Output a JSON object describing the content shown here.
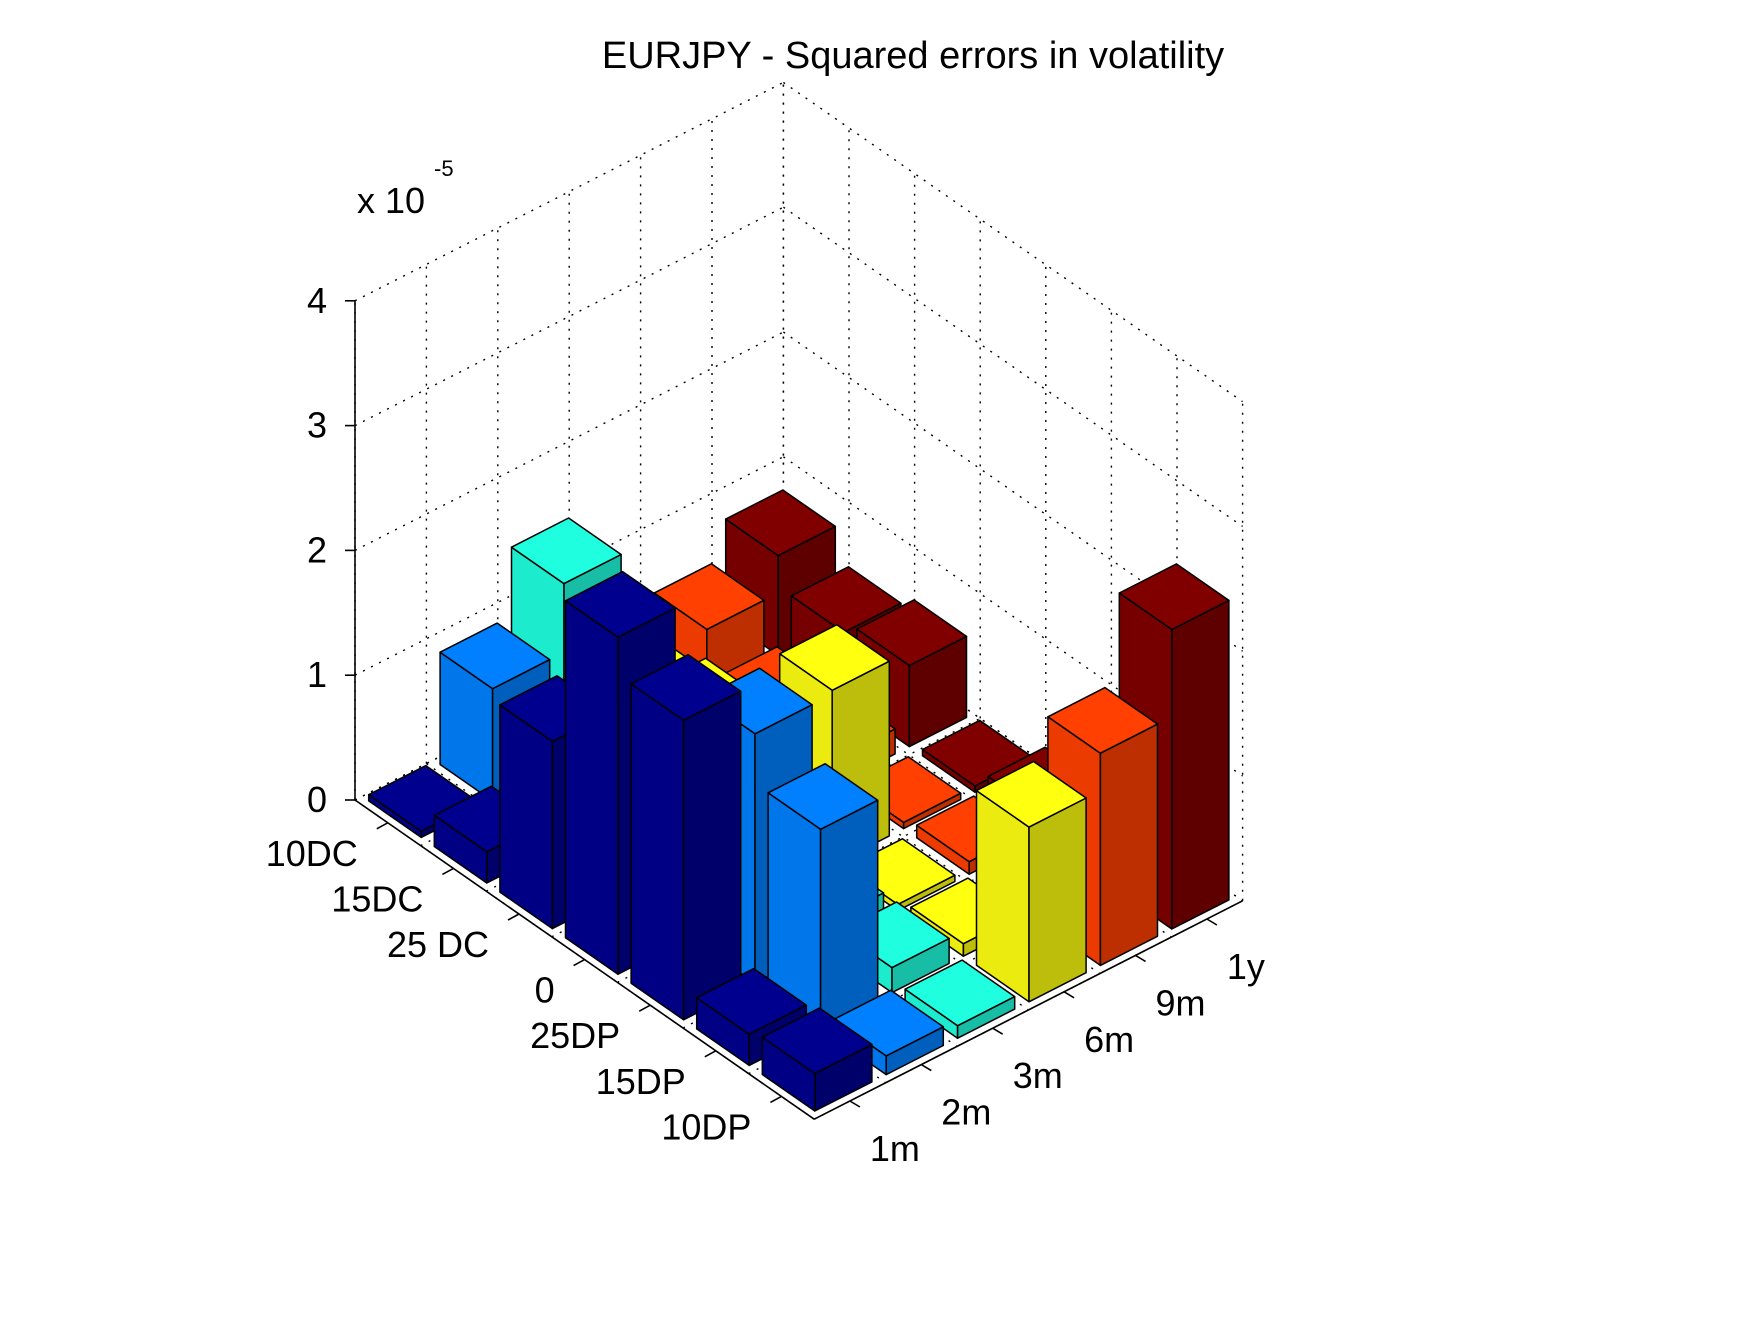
{
  "chart_data": {
    "type": "bar3",
    "title": "EURJPY - Squared errors in volatility",
    "z_scale_label": "x 10",
    "z_scale_exponent": "-5",
    "z_ticks": [
      "0",
      "1",
      "2",
      "3",
      "4"
    ],
    "zlim": [
      0,
      4
    ],
    "strikes": [
      "10DC",
      "15DC",
      "25 DC",
      "0",
      "25DP",
      "15DP",
      "10DP"
    ],
    "maturities": [
      "1m",
      "2m",
      "3m",
      "6m",
      "9m",
      "1y"
    ],
    "series_colors": [
      "#00008f",
      "#0080ff",
      "#1fffdf",
      "#ffff10",
      "#ff4000",
      "#800000"
    ],
    "series": [
      {
        "maturity": "1m",
        "values": [
          0.05,
          0.25,
          1.5,
          2.7,
          2.4,
          0.25,
          0.3
        ]
      },
      {
        "maturity": "2m",
        "values": [
          0.9,
          0.25,
          0.25,
          0.2,
          2.0,
          1.6,
          0.15
        ]
      },
      {
        "maturity": "3m",
        "values": [
          1.45,
          0.8,
          0.1,
          0.2,
          0.2,
          0.2,
          0.1
        ]
      },
      {
        "maturity": "6m",
        "values": [
          0.3,
          0.4,
          0.5,
          1.4,
          0.05,
          0.1,
          1.4
        ]
      },
      {
        "maturity": "9m",
        "values": [
          0.5,
          0.2,
          0.2,
          0.05,
          0.1,
          0.2,
          1.7
        ]
      },
      {
        "maturity": "1y",
        "values": [
          0.8,
          0.55,
          0.65,
          0.05,
          0.2,
          0.4,
          2.4
        ]
      }
    ]
  }
}
